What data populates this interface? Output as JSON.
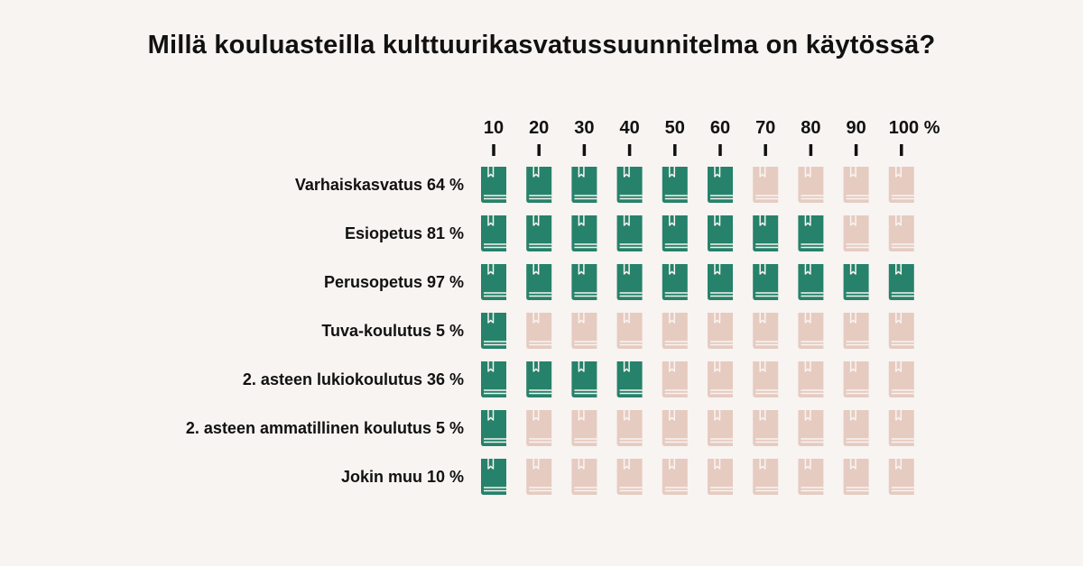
{
  "chart_data": {
    "type": "pictogram",
    "title": "Millä kouluasteilla kulttuurikasvatussuunnitelma on käytössä?",
    "unit": "%",
    "ticks": [
      "10",
      "20",
      "30",
      "40",
      "50",
      "60",
      "70",
      "80",
      "90",
      "100 %"
    ],
    "icon": "book-icon",
    "icons_per_row": 10,
    "value_per_icon": 10,
    "categories": [
      "Varhaiskasvatus",
      "Esiopetus",
      "Perusopetus",
      "Tuva-koulutus",
      "2. asteen lukiokoulutus",
      "2. asteen ammatillinen koulutus",
      "Jokin muu"
    ],
    "labels": [
      "Varhaiskasvatus 64 %",
      "Esiopetus 81 %",
      "Perusopetus 97 %",
      "Tuva-koulutus 5 %",
      "2. asteen lukiokoulutus 36 %",
      "2. asteen ammatillinen koulutus 5 %",
      "Jokin muu 10 %"
    ],
    "values": [
      64,
      81,
      97,
      5,
      36,
      5,
      10
    ],
    "filled_icons": [
      6,
      8,
      10,
      1,
      4,
      1,
      1
    ],
    "colors": {
      "filled": "#26826a",
      "empty": "#e6cbc1",
      "background": "#f8f4f1",
      "text": "#111111"
    }
  }
}
